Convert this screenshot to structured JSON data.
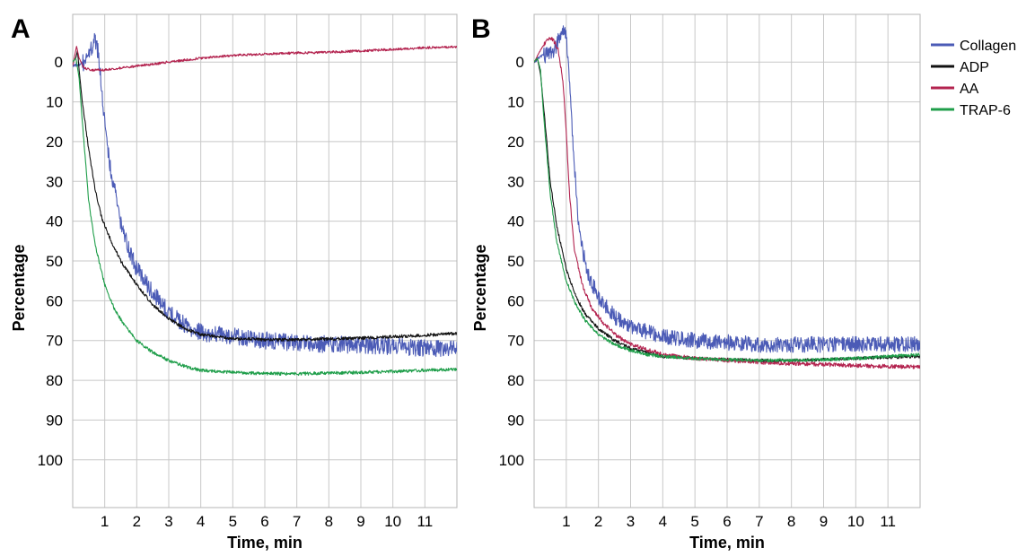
{
  "chart_data": [
    {
      "panel_label": "A",
      "type": "line",
      "xlabel": "Time, min",
      "ylabel": "Percentage",
      "xlim": [
        0,
        12
      ],
      "ylim": [
        -12,
        112
      ],
      "y_inverted": true,
      "xticks": [
        1,
        2,
        3,
        4,
        5,
        6,
        7,
        8,
        9,
        10,
        11
      ],
      "yticks": [
        0,
        10,
        20,
        30,
        40,
        50,
        60,
        70,
        80,
        90,
        100
      ],
      "grid": true,
      "series": [
        {
          "name": "Collagen",
          "color": "#4b5bb6",
          "noise": 2.2,
          "x": [
            0,
            0.2,
            0.4,
            0.55,
            0.7,
            0.8,
            0.9,
            1.0,
            1.2,
            1.5,
            1.8,
            2.0,
            2.5,
            3.0,
            3.5,
            4,
            5,
            6,
            7,
            8,
            9,
            10,
            11,
            12
          ],
          "y": [
            1,
            0.5,
            0,
            -3,
            -5.5,
            -2,
            6,
            15,
            28,
            40,
            48,
            52,
            58,
            63,
            66,
            68,
            69,
            70,
            70.5,
            71,
            71,
            71.5,
            72,
            72
          ]
        },
        {
          "name": "ADP",
          "color": "#111111",
          "noise": 0.4,
          "x": [
            0,
            0.1,
            0.15,
            0.2,
            0.3,
            0.5,
            0.7,
            0.9,
            1.2,
            1.5,
            2.0,
            2.5,
            3.0,
            3.5,
            4,
            5,
            6,
            7,
            8,
            9,
            10,
            11,
            12
          ],
          "y": [
            0,
            -1,
            -3,
            2,
            10,
            22,
            32,
            39,
            45,
            50,
            56,
            61,
            64.5,
            67,
            68.5,
            69.5,
            69.8,
            69.8,
            69.6,
            69.4,
            69,
            68.7,
            68.2
          ]
        },
        {
          "name": "AA",
          "color": "#b3234f",
          "noise": 0.3,
          "x": [
            0,
            0.12,
            0.2,
            0.35,
            0.6,
            1.0,
            2,
            3,
            4,
            5,
            6,
            7,
            8,
            9,
            10,
            11,
            12
          ],
          "y": [
            1,
            -4,
            -1,
            1.5,
            2,
            2,
            1,
            0,
            -1,
            -1.7,
            -2,
            -2.3,
            -2.5,
            -2.8,
            -3.2,
            -3.6,
            -3.8
          ]
        },
        {
          "name": "TRAP-6",
          "color": "#1f9e4a",
          "noise": 0.4,
          "x": [
            0,
            0.1,
            0.2,
            0.3,
            0.5,
            0.7,
            1.0,
            1.3,
            1.6,
            2.0,
            2.5,
            3.0,
            3.5,
            4,
            5,
            6,
            7,
            8,
            9,
            10,
            11,
            12
          ],
          "y": [
            0,
            -1,
            4,
            15,
            35,
            46,
            56,
            62,
            66,
            70,
            73,
            75,
            76.5,
            77.5,
            78,
            78.3,
            78.4,
            78.2,
            78,
            77.8,
            77.5,
            77.2
          ]
        }
      ]
    },
    {
      "panel_label": "B",
      "type": "line",
      "xlabel": "Time, min",
      "ylabel": "Percentage",
      "xlim": [
        0,
        12
      ],
      "ylim": [
        -12,
        112
      ],
      "y_inverted": true,
      "xticks": [
        1,
        2,
        3,
        4,
        5,
        6,
        7,
        8,
        9,
        10,
        11
      ],
      "yticks": [
        0,
        10,
        20,
        30,
        40,
        50,
        60,
        70,
        80,
        90,
        100
      ],
      "grid": true,
      "series": [
        {
          "name": "Collagen",
          "color": "#4b5bb6",
          "noise": 2.0,
          "x": [
            0,
            0.2,
            0.45,
            0.6,
            0.8,
            0.9,
            1.0,
            1.1,
            1.2,
            1.35,
            1.5,
            1.7,
            2.0,
            2.5,
            3,
            4,
            5,
            6,
            7,
            8,
            9,
            10,
            11,
            12
          ],
          "y": [
            0,
            -1.5,
            -2,
            -3,
            -6,
            -8,
            -7,
            5,
            20,
            38,
            47,
            54,
            59,
            64,
            66.5,
            69,
            70,
            70.5,
            71,
            71,
            71,
            71,
            71,
            71
          ]
        },
        {
          "name": "ADP",
          "color": "#111111",
          "noise": 0.4,
          "x": [
            0,
            0.1,
            0.2,
            0.35,
            0.5,
            0.7,
            1.0,
            1.3,
            1.6,
            2.0,
            2.5,
            3.0,
            3.5,
            4,
            5,
            6,
            7,
            8,
            9,
            10,
            11,
            12
          ],
          "y": [
            0,
            -1,
            3,
            16,
            30,
            41,
            52,
            59,
            63.5,
            67,
            70,
            72,
            73,
            74,
            74.5,
            74.8,
            75,
            75,
            74.8,
            74.5,
            74.2,
            74
          ]
        },
        {
          "name": "AA",
          "color": "#b3234f",
          "noise": 0.5,
          "x": [
            0,
            0.2,
            0.35,
            0.5,
            0.6,
            0.75,
            0.9,
            1.0,
            1.1,
            1.25,
            1.5,
            1.8,
            2.2,
            2.6,
            3,
            4,
            5,
            6,
            7,
            8,
            9,
            10,
            11,
            12
          ],
          "y": [
            0,
            -3,
            -5,
            -6,
            -5.5,
            -3,
            5,
            18,
            33,
            47,
            56,
            62,
            66,
            69,
            71,
            73.5,
            74.5,
            75,
            75.5,
            75.8,
            76,
            76.3,
            76.5,
            76.7
          ]
        },
        {
          "name": "TRAP-6",
          "color": "#1f9e4a",
          "noise": 0.4,
          "x": [
            0,
            0.1,
            0.2,
            0.3,
            0.5,
            0.7,
            1.0,
            1.3,
            1.6,
            2.0,
            2.5,
            3.0,
            3.5,
            4,
            5,
            6,
            7,
            8,
            9,
            10,
            11,
            12
          ],
          "y": [
            0,
            -1,
            2,
            14,
            33,
            45,
            55,
            61,
            65,
            68.5,
            71,
            72.5,
            73.5,
            74,
            74.5,
            74.8,
            75,
            75,
            74.8,
            74.5,
            74,
            73.5
          ]
        }
      ]
    }
  ],
  "legend": {
    "placement": "top-right",
    "items": [
      {
        "label": "Collagen",
        "color": "#4b5bb6"
      },
      {
        "label": "ADP",
        "color": "#111111"
      },
      {
        "label": "AA",
        "color": "#b3234f"
      },
      {
        "label": "TRAP-6",
        "color": "#1f9e4a"
      }
    ]
  }
}
